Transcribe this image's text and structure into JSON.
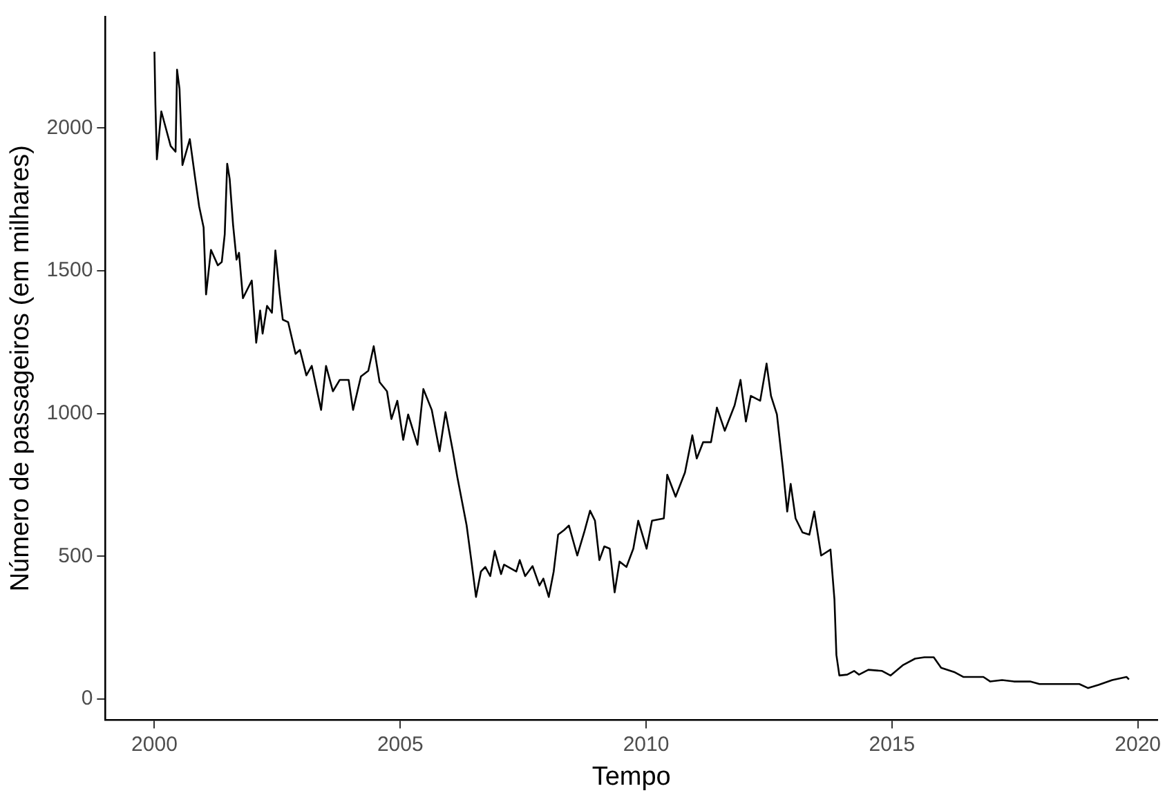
{
  "chart_data": {
    "type": "line",
    "xlabel": "Tempo",
    "ylabel": "Número de passageiros (em milhares)",
    "xlim": [
      1999,
      2020.4
    ],
    "xticks": [
      2000,
      2005,
      2010,
      2015,
      2020
    ],
    "ylim": [
      -73,
      2390
    ],
    "yticks": [
      0,
      500,
      1000,
      1500,
      2000
    ],
    "grid": false,
    "legend": false,
    "marker": "none",
    "line_style": "solid",
    "series": [
      {
        "color": "#000000",
        "x": [
          2000.0,
          2000.02,
          2000.05,
          2000.14,
          2000.33,
          2000.43,
          2000.46,
          2000.51,
          2000.57,
          2000.72,
          2000.83,
          2000.91,
          2001.0,
          2001.05,
          2001.15,
          2001.29,
          2001.37,
          2001.43,
          2001.48,
          2001.53,
          2001.6,
          2001.67,
          2001.72,
          2001.8,
          2001.91,
          2001.98,
          2002.07,
          2002.15,
          2002.2,
          2002.29,
          2002.39,
          2002.46,
          2002.55,
          2002.61,
          2002.72,
          2002.87,
          2002.96,
          2003.09,
          2003.2,
          2003.39,
          2003.49,
          2003.63,
          2003.77,
          2003.95,
          2004.04,
          2004.2,
          2004.35,
          2004.46,
          2004.58,
          2004.73,
          2004.82,
          2004.94,
          2005.06,
          2005.16,
          2005.35,
          2005.47,
          2005.64,
          2005.8,
          2005.92,
          2006.07,
          2006.16,
          2006.35,
          2006.45,
          2006.54,
          2006.64,
          2006.73,
          2006.83,
          2006.92,
          2007.05,
          2007.11,
          2007.36,
          2007.43,
          2007.54,
          2007.69,
          2007.83,
          2007.91,
          2008.02,
          2008.12,
          2008.21,
          2008.33,
          2008.43,
          2008.6,
          2008.74,
          2008.86,
          2008.96,
          2009.05,
          2009.15,
          2009.26,
          2009.36,
          2009.46,
          2009.6,
          2009.74,
          2009.84,
          2010.01,
          2010.12,
          2010.36,
          2010.43,
          2010.6,
          2010.79,
          2010.94,
          2011.03,
          2011.16,
          2011.32,
          2011.44,
          2011.6,
          2011.8,
          2011.92,
          2012.03,
          2012.13,
          2012.32,
          2012.45,
          2012.54,
          2012.66,
          2012.78,
          2012.87,
          2012.94,
          2013.04,
          2013.18,
          2013.32,
          2013.42,
          2013.56,
          2013.75,
          2013.83,
          2013.87,
          2013.93,
          2014.09,
          2014.23,
          2014.33,
          2014.52,
          2014.8,
          2014.97,
          2015.23,
          2015.47,
          2015.66,
          2015.85,
          2016.0,
          2016.28,
          2016.45,
          2016.86,
          2017.0,
          2017.24,
          2017.48,
          2017.81,
          2018.0,
          2018.81,
          2018.99,
          2019.2,
          2019.48,
          2019.77,
          2019.82
        ],
        "values": [
          2267,
          2083,
          1890,
          2058,
          1937,
          1917,
          2204,
          2137,
          1870,
          1961,
          1822,
          1725,
          1652,
          1417,
          1573,
          1519,
          1531,
          1628,
          1875,
          1822,
          1660,
          1539,
          1563,
          1404,
          1442,
          1466,
          1248,
          1361,
          1280,
          1377,
          1353,
          1571,
          1417,
          1329,
          1320,
          1209,
          1223,
          1134,
          1167,
          1013,
          1167,
          1078,
          1118,
          1118,
          1013,
          1130,
          1150,
          1236,
          1110,
          1078,
          981,
          1045,
          908,
          997,
          891,
          1086,
          1013,
          868,
          1005,
          868,
          778,
          608,
          479,
          358,
          447,
          463,
          431,
          519,
          438,
          471,
          447,
          487,
          431,
          466,
          398,
          422,
          358,
          447,
          576,
          592,
          608,
          503,
          584,
          660,
          625,
          487,
          535,
          527,
          374,
          482,
          463,
          527,
          625,
          527,
          625,
          633,
          786,
          709,
          794,
          924,
          843,
          900,
          900,
          1021,
          940,
          1029,
          1118,
          972,
          1062,
          1045,
          1175,
          1062,
          997,
          811,
          657,
          754,
          633,
          584,
          576,
          657,
          503,
          524,
          350,
          155,
          83,
          86,
          99,
          86,
          103,
          99,
          83,
          120,
          142,
          147,
          147,
          110,
          94,
          78,
          78,
          62,
          67,
          62,
          62,
          53,
          53,
          39,
          50,
          67,
          78,
          69
        ]
      }
    ]
  }
}
